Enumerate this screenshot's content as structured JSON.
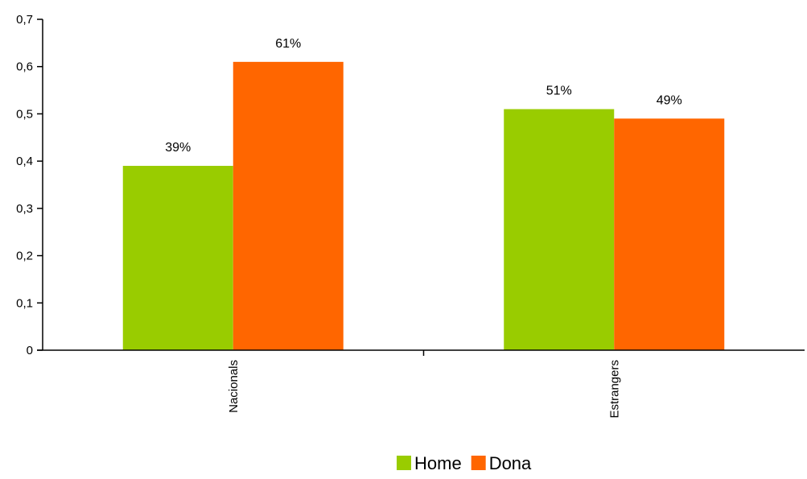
{
  "chart_data": {
    "type": "bar",
    "categories": [
      "Nacionals",
      "Estrangers"
    ],
    "series": [
      {
        "name": "Home",
        "values": [
          0.39,
          0.51
        ],
        "labels": [
          "39%",
          "51%"
        ],
        "color": "#99CC00"
      },
      {
        "name": "Dona",
        "values": [
          0.61,
          0.49
        ],
        "labels": [
          "61%",
          "49%"
        ],
        "color": "#FF6600"
      }
    ],
    "yticks": [
      "0",
      "0,1",
      "0,2",
      "0,3",
      "0,4",
      "0,5",
      "0,6",
      "0,7"
    ],
    "ylim": [
      0,
      0.7
    ],
    "grid": false,
    "legend_position": "bottom"
  }
}
